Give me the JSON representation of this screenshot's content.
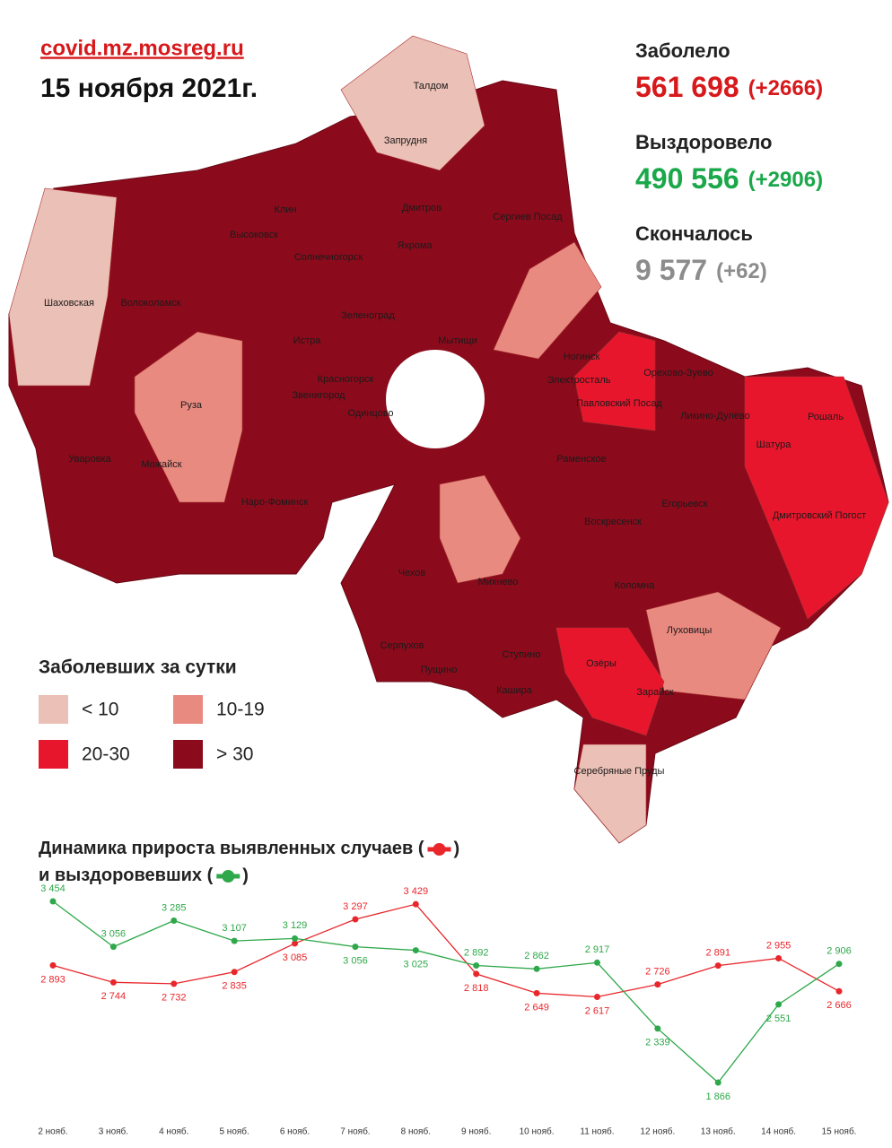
{
  "header": {
    "site": "covid.mz.mosreg.ru",
    "date": "15 ноября 2021г."
  },
  "stats": [
    {
      "label": "Заболело",
      "value": "561 698",
      "delta": "(+2666)",
      "color": "#d7191c"
    },
    {
      "label": "Выздоровело",
      "value": "490 556",
      "delta": "(+2906)",
      "color": "#1aa84a"
    },
    {
      "label": "Скончалось",
      "value": "9 577",
      "delta": "(+62)",
      "color": "#8c8c8c"
    }
  ],
  "legend": {
    "title": "Заболевших за сутки",
    "items": [
      {
        "label": "< 10",
        "color": "#ebc0b6"
      },
      {
        "label": "10-19",
        "color": "#e98a80"
      },
      {
        "label": "20-30",
        "color": "#e8162d"
      },
      {
        "label": "> 30",
        "color": "#8b0b1c"
      }
    ]
  },
  "map": {
    "cities": [
      "Талдом",
      "Запрудня",
      "Клин",
      "Дмитров",
      "Сергиев Посад",
      "Высоковск",
      "Яхрома",
      "Солнечногорск",
      "Шаховская",
      "Волоколамск",
      "Зеленоград",
      "Мытищи",
      "Истра",
      "Ногинск",
      "Орехово-Зуево",
      "Красногорск",
      "Электросталь",
      "Звенигород",
      "Павловский Посад",
      "Руза",
      "Одинцово",
      "Ликино-Дулёво",
      "Рошаль",
      "Шатура",
      "Раменское",
      "Уваровка",
      "Можайск",
      "Наро-Фоминск",
      "Егорьевск",
      "Дмитровский Погост",
      "Воскресенск",
      "Чехов",
      "Михнево",
      "Коломна",
      "Луховицы",
      "Серпухов",
      "Пущино",
      "Ступино",
      "Озёры",
      "Кашира",
      "Зарайск",
      "Серебряные Пруды"
    ]
  },
  "chart_data": {
    "type": "line",
    "title_line1": "Динамика прироста выявленных случаев (",
    "title_line2": "и выздоровевших (",
    "paren_close": ")",
    "categories": [
      "2 нояб.",
      "3 нояб.",
      "4 нояб.",
      "5 нояб.",
      "6 нояб.",
      "7 нояб.",
      "8 нояб.",
      "9 нояб.",
      "10 нояб.",
      "11 нояб.",
      "12 нояб.",
      "13 нояб.",
      "14 нояб.",
      "15 нояб."
    ],
    "series": [
      {
        "name": "выявленные случаи",
        "color": "#e8262b",
        "values": [
          2893,
          2744,
          2732,
          2835,
          3085,
          3297,
          3429,
          2818,
          2649,
          2617,
          2726,
          2891,
          2955,
          2666
        ],
        "value_labels": [
          "2 893",
          "2 744",
          "2 732",
          "2 835",
          "3 085",
          "3 297",
          "3 429",
          "2 818",
          "2 649",
          "2 617",
          "2 726",
          "2 891",
          "2 955",
          "2 666"
        ]
      },
      {
        "name": "выздоровевшие",
        "color": "#2ea84a",
        "values": [
          3454,
          3056,
          3285,
          3107,
          3129,
          3056,
          3025,
          2892,
          2862,
          2917,
          2339,
          1866,
          2551,
          2906
        ],
        "value_labels": [
          "3 454",
          "3 056",
          "3 285",
          "3 107",
          "3 129",
          "3 056",
          "3 025",
          "2 892",
          "2 862",
          "2 917",
          "2 339",
          "1 866",
          "2 551",
          "2 906"
        ]
      }
    ]
  }
}
